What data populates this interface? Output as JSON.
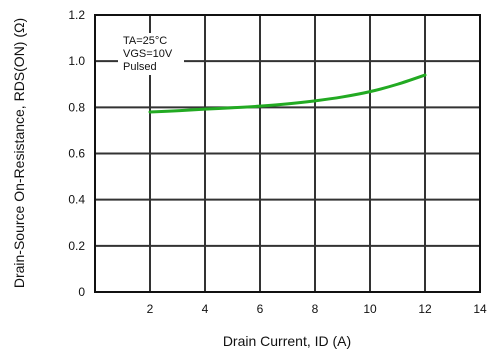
{
  "chart_data": {
    "type": "line",
    "title": "",
    "xlabel": "Drain Current, ID (A)",
    "ylabel": "Drain-Source On-Resistance, RDS(ON) (Ω)",
    "xlim": [
      0,
      14
    ],
    "ylim": [
      0,
      1.2
    ],
    "x_ticks": [
      2,
      4,
      6,
      8,
      10,
      12,
      14
    ],
    "y_ticks": [
      "0",
      "0.2",
      "0.4",
      "0.6",
      "0.8",
      "1.0",
      "1.2"
    ],
    "grid": true,
    "annotation_lines": [
      "TA=25°C",
      "VGS=10V",
      "Pulsed"
    ],
    "series": [
      {
        "color": "#22aa22",
        "x": [
          2,
          3,
          4,
          5,
          6,
          7,
          8,
          9,
          10,
          11,
          12
        ],
        "y": [
          0.78,
          0.785,
          0.792,
          0.798,
          0.805,
          0.815,
          0.828,
          0.845,
          0.868,
          0.9,
          0.94
        ]
      }
    ]
  }
}
